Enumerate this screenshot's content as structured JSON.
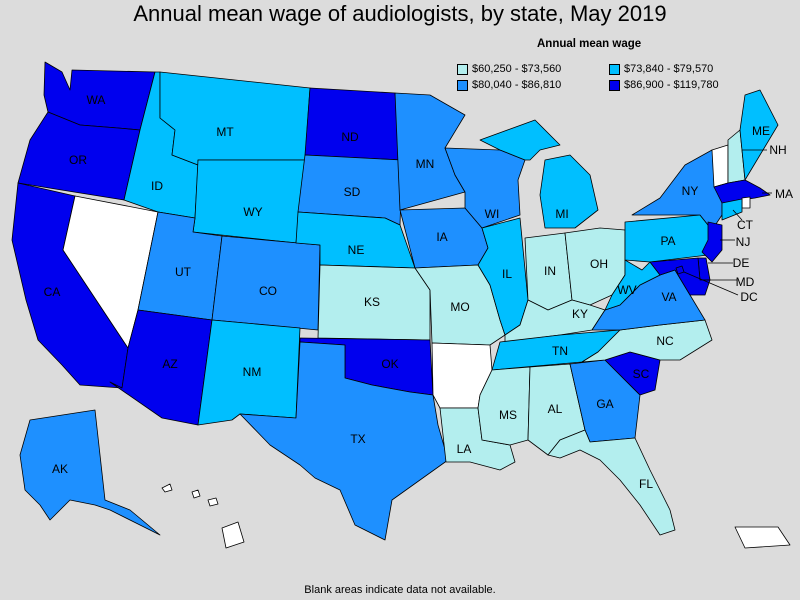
{
  "title": "Annual mean wage of audiologists, by state, May 2019",
  "footnote": "Blank areas indicate data not available.",
  "legend": {
    "title": "Annual mean wage",
    "items": [
      {
        "label": "$60,250 - $73,560",
        "color": "#b3eeee"
      },
      {
        "label": "$73,840 - $79,570",
        "color": "#00bfff"
      },
      {
        "label": "$80,040 - $86,810",
        "color": "#1e90ff"
      },
      {
        "label": "$86,900 - $119,780",
        "color": "#0000ee"
      }
    ]
  },
  "no_data_color": "#ffffff",
  "states": {
    "WA": {
      "label": "WA",
      "tier": 3
    },
    "OR": {
      "label": "OR",
      "tier": 3
    },
    "CA": {
      "label": "CA",
      "tier": 3
    },
    "NV": {
      "label": "",
      "tier": -1
    },
    "ID": {
      "label": "ID",
      "tier": 1
    },
    "MT": {
      "label": "MT",
      "tier": 1
    },
    "WY": {
      "label": "WY",
      "tier": 1
    },
    "UT": {
      "label": "UT",
      "tier": 2
    },
    "AZ": {
      "label": "AZ",
      "tier": 3
    },
    "CO": {
      "label": "CO",
      "tier": 2
    },
    "NM": {
      "label": "NM",
      "tier": 1
    },
    "ND": {
      "label": "ND",
      "tier": 3
    },
    "SD": {
      "label": "SD",
      "tier": 2
    },
    "NE": {
      "label": "NE",
      "tier": 1
    },
    "KS": {
      "label": "KS",
      "tier": 0
    },
    "OK": {
      "label": "OK",
      "tier": 3
    },
    "TX": {
      "label": "TX",
      "tier": 2
    },
    "MN": {
      "label": "MN",
      "tier": 2
    },
    "IA": {
      "label": "IA",
      "tier": 2
    },
    "MO": {
      "label": "MO",
      "tier": 0
    },
    "AR": {
      "label": "",
      "tier": -1
    },
    "LA": {
      "label": "LA",
      "tier": 0
    },
    "WI": {
      "label": "WI",
      "tier": 2
    },
    "IL": {
      "label": "IL",
      "tier": 1
    },
    "MI": {
      "label": "MI",
      "tier": 1
    },
    "IN": {
      "label": "IN",
      "tier": 0
    },
    "OH": {
      "label": "OH",
      "tier": 0
    },
    "KY": {
      "label": "KY",
      "tier": 0
    },
    "TN": {
      "label": "TN",
      "tier": 1
    },
    "MS": {
      "label": "MS",
      "tier": 0
    },
    "AL": {
      "label": "AL",
      "tier": 0
    },
    "GA": {
      "label": "GA",
      "tier": 2
    },
    "FL": {
      "label": "FL",
      "tier": 0
    },
    "SC": {
      "label": "SC",
      "tier": 3
    },
    "NC": {
      "label": "NC",
      "tier": 0
    },
    "VA": {
      "label": "VA",
      "tier": 2
    },
    "WV": {
      "label": "WV",
      "tier": 1
    },
    "PA": {
      "label": "PA",
      "tier": 1
    },
    "NY": {
      "label": "NY",
      "tier": 2
    },
    "VT": {
      "label": "",
      "tier": -1
    },
    "NH": {
      "label": "NH",
      "tier": 0
    },
    "ME": {
      "label": "ME",
      "tier": 1
    },
    "MA": {
      "label": "MA",
      "tier": 3
    },
    "RI": {
      "label": "",
      "tier": -1
    },
    "CT": {
      "label": "CT",
      "tier": 1
    },
    "NJ": {
      "label": "NJ",
      "tier": 3
    },
    "DE": {
      "label": "DE",
      "tier": 3
    },
    "MD": {
      "label": "MD",
      "tier": 3
    },
    "DC": {
      "label": "DC",
      "tier": 3
    },
    "AK": {
      "label": "AK",
      "tier": 2
    },
    "HI": {
      "label": "",
      "tier": -1
    },
    "PR": {
      "label": "",
      "tier": -1
    }
  }
}
